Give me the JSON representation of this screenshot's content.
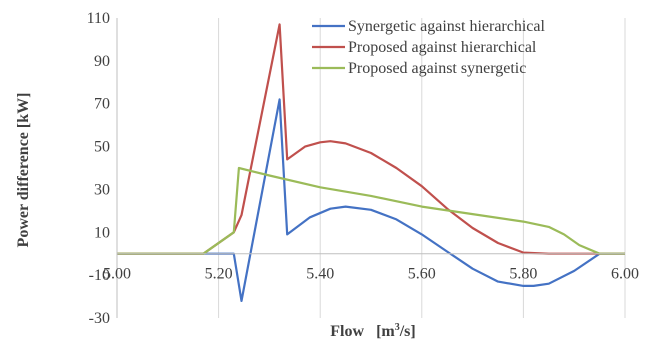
{
  "chart_data": {
    "type": "line",
    "xlabel": "Flow",
    "xlabel_unit_prefix": "[m",
    "xlabel_unit_sup": "3",
    "xlabel_unit_suffix": "/s]",
    "ylabel": "Power difference [kW]",
    "xlim": [
      5.0,
      6.0
    ],
    "ylim": [
      -30,
      110
    ],
    "yticks": [
      -30,
      -10,
      10,
      30,
      50,
      70,
      90,
      110
    ],
    "ytick_labels": [
      "-30",
      "-10",
      "10",
      "30",
      "50",
      "70",
      "90",
      "110"
    ],
    "xtick_values": [
      5.0,
      5.2,
      5.4,
      5.6,
      5.8,
      6.0
    ],
    "xtick_labels": [
      "5.00",
      "5.20",
      "5.40",
      "5.60",
      "5.80",
      "6.00"
    ],
    "xaxis_at_y": 0,
    "grid": "vertical",
    "legend_position": "top-right",
    "series": [
      {
        "name": "Synergetic against hierarchical",
        "color": "#4472c4",
        "x": [
          5.0,
          5.23,
          5.245,
          5.32,
          5.335,
          5.38,
          5.42,
          5.45,
          5.5,
          5.55,
          5.6,
          5.65,
          5.7,
          5.75,
          5.8,
          5.82,
          5.85,
          5.9,
          5.95,
          6.0
        ],
        "y": [
          0,
          0,
          -22,
          72,
          9,
          17,
          21,
          22,
          20.5,
          16,
          9,
          1,
          -7,
          -13,
          -15,
          -15,
          -14,
          -8,
          0,
          0
        ]
      },
      {
        "name": "Proposed against hierarchical",
        "color": "#c0504d",
        "x": [
          5.0,
          5.17,
          5.23,
          5.245,
          5.32,
          5.335,
          5.37,
          5.4,
          5.42,
          5.45,
          5.5,
          5.55,
          5.6,
          5.65,
          5.7,
          5.75,
          5.8,
          5.85,
          5.9,
          5.95,
          6.0
        ],
        "y": [
          0,
          0,
          10,
          18,
          107,
          44,
          50,
          52,
          52.5,
          51.5,
          47,
          40,
          31.5,
          21,
          12,
          5,
          0.5,
          0,
          0,
          0,
          0
        ]
      },
      {
        "name": "Proposed against synergetic",
        "color": "#9bbb59",
        "x": [
          5.0,
          5.17,
          5.23,
          5.24,
          5.3,
          5.4,
          5.5,
          5.6,
          5.7,
          5.8,
          5.85,
          5.88,
          5.91,
          5.95,
          6.0
        ],
        "y": [
          0,
          0,
          10,
          40,
          36.5,
          31,
          27,
          22,
          18.5,
          15,
          12.5,
          9,
          4,
          0,
          0
        ]
      }
    ]
  }
}
